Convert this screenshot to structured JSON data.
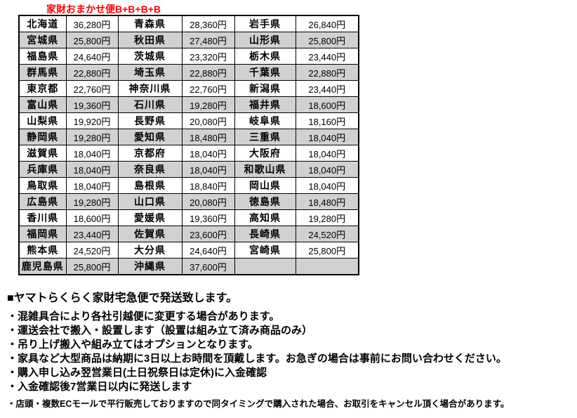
{
  "title": "家財おまかせ便B+B+B+B",
  "title_color": "#ff0000",
  "table": {
    "row_alt_color": "#d1d1d1",
    "row_base_color": "#ffffff",
    "border_color": "#000000",
    "currency_suffix": "円",
    "rows": [
      [
        {
          "pref": "北海道",
          "price": "36,280円"
        },
        {
          "pref": "青森県",
          "price": "28,360円"
        },
        {
          "pref": "岩手県",
          "price": "26,840円"
        }
      ],
      [
        {
          "pref": "宮城県",
          "price": "25,800円"
        },
        {
          "pref": "秋田県",
          "price": "27,480円"
        },
        {
          "pref": "山形県",
          "price": "25,800円"
        }
      ],
      [
        {
          "pref": "福島県",
          "price": "24,640円"
        },
        {
          "pref": "茨城県",
          "price": "23,320円"
        },
        {
          "pref": "栃木県",
          "price": "23,440円"
        }
      ],
      [
        {
          "pref": "群馬県",
          "price": "22,880円"
        },
        {
          "pref": "埼玉県",
          "price": "22,880円"
        },
        {
          "pref": "千葉県",
          "price": "22,880円"
        }
      ],
      [
        {
          "pref": "東京都",
          "price": "22,760円"
        },
        {
          "pref": "神奈川県",
          "price": "22,760円"
        },
        {
          "pref": "新潟県",
          "price": "23,440円"
        }
      ],
      [
        {
          "pref": "富山県",
          "price": "19,360円"
        },
        {
          "pref": "石川県",
          "price": "19,280円"
        },
        {
          "pref": "福井県",
          "price": "18,600円"
        }
      ],
      [
        {
          "pref": "山梨県",
          "price": "19,920円"
        },
        {
          "pref": "長野県",
          "price": "20,080円"
        },
        {
          "pref": "岐阜県",
          "price": "18,160円"
        }
      ],
      [
        {
          "pref": "静岡県",
          "price": "19,280円"
        },
        {
          "pref": "愛知県",
          "price": "18,480円"
        },
        {
          "pref": "三重県",
          "price": "18,040円"
        }
      ],
      [
        {
          "pref": "滋賀県",
          "price": "18,040円"
        },
        {
          "pref": "京都府",
          "price": "18,040円"
        },
        {
          "pref": "大阪府",
          "price": "18,040円"
        }
      ],
      [
        {
          "pref": "兵庫県",
          "price": "18,040円"
        },
        {
          "pref": "奈良県",
          "price": "18,040円"
        },
        {
          "pref": "和歌山県",
          "price": "18,040円"
        }
      ],
      [
        {
          "pref": "鳥取県",
          "price": "18,040円"
        },
        {
          "pref": "島根県",
          "price": "18,840円"
        },
        {
          "pref": "岡山県",
          "price": "18,040円"
        }
      ],
      [
        {
          "pref": "広島県",
          "price": "19,280円"
        },
        {
          "pref": "山口県",
          "price": "20,080円"
        },
        {
          "pref": "徳島県",
          "price": "18,480円"
        }
      ],
      [
        {
          "pref": "香川県",
          "price": "18,600円"
        },
        {
          "pref": "愛媛県",
          "price": "19,360円"
        },
        {
          "pref": "高知県",
          "price": "19,280円"
        }
      ],
      [
        {
          "pref": "福岡県",
          "price": "23,440円"
        },
        {
          "pref": "佐賀県",
          "price": "23,600円"
        },
        {
          "pref": "長崎県",
          "price": "24,520円"
        }
      ],
      [
        {
          "pref": "熊本県",
          "price": "24,520円"
        },
        {
          "pref": "大分県",
          "price": "24,640円"
        },
        {
          "pref": "宮崎県",
          "price": "25,800円"
        }
      ],
      [
        {
          "pref": "鹿児島県",
          "price": "25,800円"
        },
        {
          "pref": "沖縄県",
          "price": "37,600円"
        },
        {
          "pref": "",
          "price": ""
        }
      ]
    ]
  },
  "notes": {
    "heading": "■ヤマトらくらく家財宅急便で発送致します。",
    "bullets": [
      "・混雑具合により各社引越便に変更する場合があります。",
      "・運送会社で搬入・設置します（設置は組み立て済み商品のみ）",
      "・吊り上げ搬入や組み立てはオプションとなります。",
      "・家具など大型商品は納期に3日以上お時間を頂戴します。お急ぎの場合は事前にお問い合わせください。",
      "・購入申し込み翌営業日(土日祝祭日は定休)に入金確認",
      "・入金確認後7営業日以内に発送します"
    ],
    "footnote": "・店頭・複数ECモールで平行販売しておりますので同タイミングで購入された場合、お取引をキャンセル頂く場合があります。"
  }
}
